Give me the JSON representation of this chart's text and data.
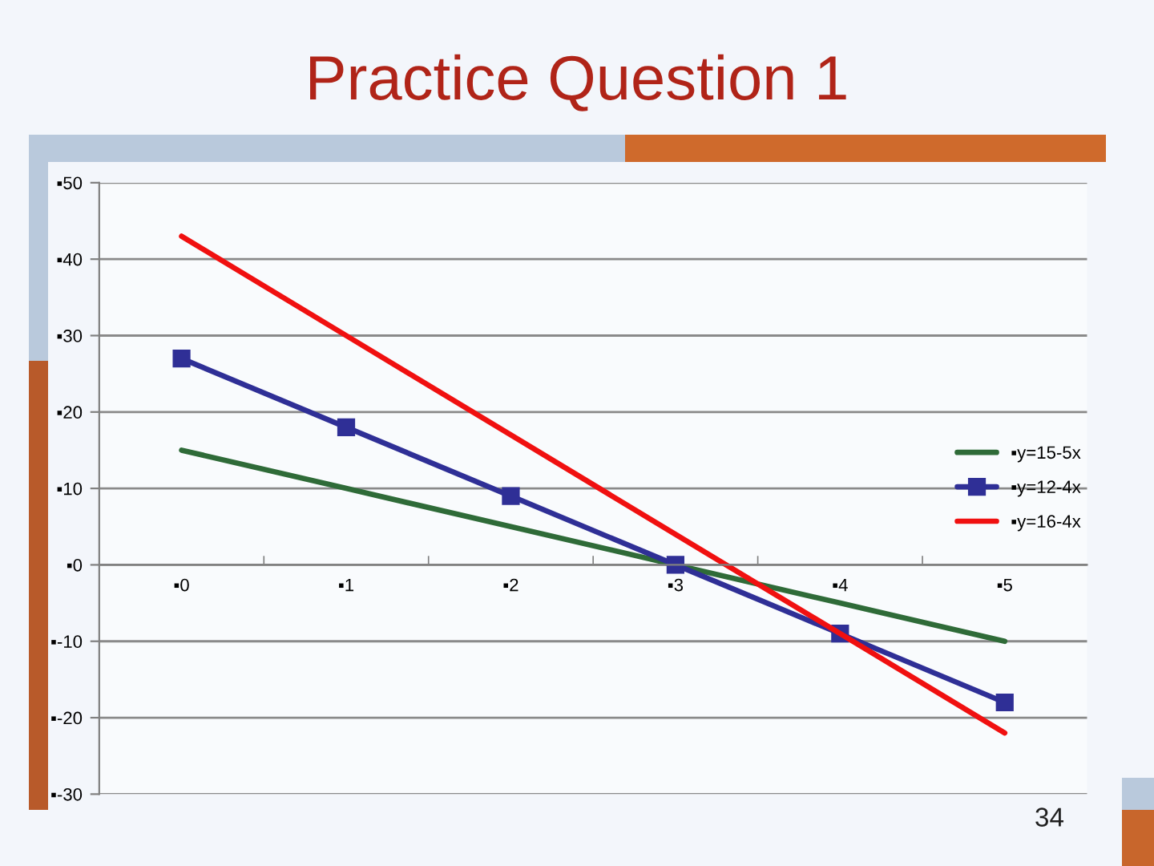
{
  "chart_data": {
    "type": "line",
    "title": "Practice Question 1",
    "categories": [
      "▪0",
      "▪1",
      "▪2",
      "▪3",
      "▪4",
      "▪5"
    ],
    "series": [
      {
        "name": "▪y=15-5x",
        "color": "#2f6b38",
        "marker": "none",
        "values": [
          15,
          10,
          5,
          0,
          -5,
          -10
        ]
      },
      {
        "name": "▪y=12-4x",
        "color": "#2f2f96",
        "marker": "square",
        "values": [
          27,
          18,
          9,
          0,
          -9,
          -18
        ]
      },
      {
        "name": "▪y=16-4x",
        "color": "#f01010",
        "marker": "none",
        "values": [
          43,
          30,
          17,
          4,
          -9,
          -22
        ]
      }
    ],
    "ylim": [
      -30,
      50
    ],
    "yticks": [
      {
        "value": -30,
        "label": "▪-30"
      },
      {
        "value": -20,
        "label": "▪-20"
      },
      {
        "value": -10,
        "label": "▪-10"
      },
      {
        "value": 0,
        "label": "▪0"
      },
      {
        "value": 10,
        "label": "▪10"
      },
      {
        "value": 20,
        "label": "▪20"
      },
      {
        "value": 30,
        "label": "▪30"
      },
      {
        "value": 40,
        "label": "▪40"
      },
      {
        "value": 50,
        "label": "▪50"
      }
    ],
    "grid": "y",
    "legend": "right",
    "line_style": "solid",
    "annotations": [
      "34"
    ]
  }
}
